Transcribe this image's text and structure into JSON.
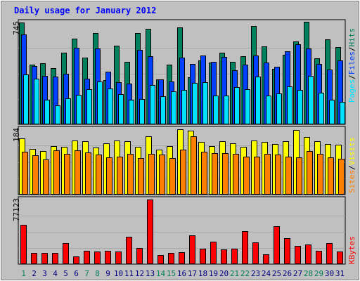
{
  "title": "Daily usage for January 2012",
  "colors": {
    "background": "#c0c0c0",
    "hits": "#00805c",
    "files": "#0040ff",
    "pages": "#00e0ff",
    "visits": "#ffff00",
    "sites": "#ff8000",
    "kbytes": "#ff0000",
    "weekend_label": "#00805c",
    "weekday_label": "#000080"
  },
  "panels": {
    "top": {
      "ymax_label": "745",
      "legend": [
        "Pages",
        "/",
        "Files",
        "/",
        "Hits"
      ]
    },
    "middle": {
      "ymax_label": "184",
      "legend": [
        "Sites",
        "/",
        "Visits"
      ]
    },
    "bottom": {
      "ymax_label": "77123",
      "legend": [
        "KBytes"
      ]
    }
  },
  "chart_data": [
    {
      "type": "bar",
      "title": "Daily usage for January 2012",
      "categories": [
        "1",
        "2",
        "3",
        "4",
        "5",
        "6",
        "7",
        "8",
        "9",
        "10",
        "11",
        "12",
        "13",
        "14",
        "15",
        "16",
        "17",
        "18",
        "19",
        "20",
        "21",
        "22",
        "23",
        "24",
        "25",
        "26",
        "27",
        "28",
        "29",
        "30",
        "31"
      ],
      "weekend_days": [
        "1",
        "7",
        "8",
        "14",
        "15",
        "21",
        "22",
        "28",
        "29"
      ],
      "ylim": [
        0,
        745
      ],
      "series": [
        {
          "name": "Hits",
          "values": [
            745,
            435,
            445,
            410,
            525,
            625,
            490,
            670,
            325,
            575,
            455,
            670,
            700,
            330,
            435,
            710,
            345,
            465,
            450,
            525,
            455,
            500,
            720,
            570,
            405,
            510,
            605,
            750,
            485,
            620,
            565
          ]
        },
        {
          "name": "Files",
          "values": [
            660,
            425,
            355,
            350,
            370,
            560,
            335,
            555,
            385,
            310,
            300,
            545,
            500,
            330,
            315,
            490,
            440,
            505,
            455,
            495,
            395,
            435,
            505,
            450,
            420,
            535,
            585,
            555,
            440,
            400,
            470
          ]
        },
        {
          "name": "Pages",
          "values": [
            365,
            335,
            180,
            140,
            190,
            215,
            255,
            315,
            260,
            220,
            180,
            185,
            290,
            205,
            240,
            250,
            305,
            310,
            210,
            210,
            270,
            255,
            350,
            210,
            225,
            280,
            250,
            355,
            230,
            180,
            165
          ]
        }
      ]
    },
    {
      "type": "bar",
      "categories": [
        "1",
        "2",
        "3",
        "4",
        "5",
        "6",
        "7",
        "8",
        "9",
        "10",
        "11",
        "12",
        "13",
        "14",
        "15",
        "16",
        "17",
        "18",
        "19",
        "20",
        "21",
        "22",
        "23",
        "24",
        "25",
        "26",
        "27",
        "28",
        "29",
        "30",
        "31"
      ],
      "ylim": [
        0,
        184
      ],
      "series": [
        {
          "name": "Visits",
          "values": [
            158,
            128,
            122,
            137,
            134,
            153,
            151,
            132,
            145,
            153,
            151,
            135,
            165,
            126,
            136,
            184,
            180,
            149,
            136,
            150,
            144,
            134,
            153,
            148,
            143,
            150,
            183,
            163,
            151,
            143,
            140
          ]
        },
        {
          "name": "Sites",
          "values": [
            120,
            110,
            98,
            124,
            114,
            125,
            118,
            112,
            104,
            106,
            114,
            102,
            114,
            112,
            103,
            126,
            165,
            121,
            116,
            117,
            114,
            106,
            106,
            114,
            112,
            106,
            105,
            122,
            114,
            104,
            100
          ]
        }
      ]
    },
    {
      "type": "bar",
      "categories": [
        "1",
        "2",
        "3",
        "4",
        "5",
        "6",
        "7",
        "8",
        "9",
        "10",
        "11",
        "12",
        "13",
        "14",
        "15",
        "16",
        "17",
        "18",
        "19",
        "20",
        "21",
        "22",
        "23",
        "24",
        "25",
        "26",
        "27",
        "28",
        "29",
        "30",
        "31"
      ],
      "ylim": [
        0,
        77123
      ],
      "series": [
        {
          "name": "KBytes",
          "values": [
            47000,
            13500,
            13500,
            13000,
            25000,
            9500,
            16300,
            15500,
            15900,
            15300,
            32900,
            19300,
            77123,
            11300,
            13000,
            14300,
            34300,
            18400,
            26800,
            17800,
            18300,
            39000,
            25800,
            11500,
            45400,
            31200,
            21500,
            23600,
            15700,
            25200,
            14700
          ]
        }
      ]
    }
  ]
}
